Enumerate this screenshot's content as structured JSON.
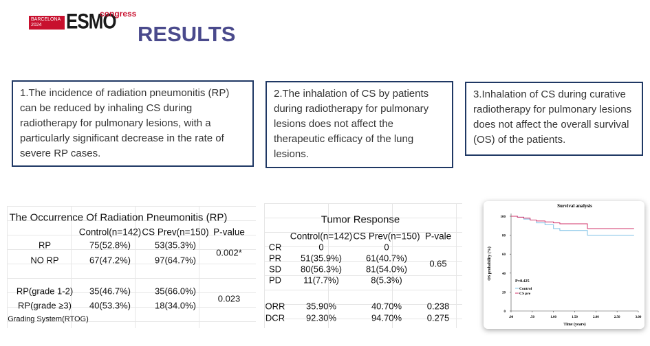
{
  "header": {
    "city": "BARCELONA",
    "year": "2024",
    "brand": "ESMO",
    "sub": "congress",
    "title": "RESULTS"
  },
  "boxes": [
    "1.The incidence of radiation pneumonitis (RP) can be reduced by inhaling CS during radiotherapy for pulmonary lesions, with a particularly significant decrease in the rate of severe RP cases.",
    "2.The inhalation of CS by patients during radiotherapy for pulmonary lesions does not affect the therapeutic efficacy of the lung lesions.",
    "3.Inhalation of CS during curative radiotherapy for pulmonary lesions does not affect the overall survival (OS) of the patients."
  ],
  "table1": {
    "title": "The Occurrence Of Radiation Pneumonitis (RP)",
    "columns": [
      "Control(n=142)",
      "CS Prev(n=150)",
      "P-value"
    ],
    "rows": [
      [
        "RP",
        "75(52.8%)",
        "53(35.3%)",
        "0.002*"
      ],
      [
        "NO RP",
        "67(47.2%)",
        "97(64.7%)"
      ],
      [
        "RP(grade 1-2)",
        "35(46.7%)",
        "35(66.0%)",
        "0.023"
      ],
      [
        "RP(grade ≥3)",
        "40(53.3%)",
        "18(34.0%)"
      ]
    ],
    "note": "Grading System(RTOG)"
  },
  "table2": {
    "title": "Tumor Response",
    "columns": [
      "Control(n=142)",
      "CS Prev(n=150)",
      "P-vale"
    ],
    "rows": [
      [
        "CR",
        "0",
        "0"
      ],
      [
        "PR",
        "51(35.9%)",
        "61(40.7%)",
        "0.65"
      ],
      [
        "SD",
        "80(56.3%)",
        "81(54.0%)"
      ],
      [
        "PD",
        "11(7.7%)",
        "8(5.3%)"
      ],
      [
        "ORR",
        "35.90%",
        "40.70%",
        "0.238"
      ],
      [
        "DCR",
        "92.30%",
        "94.70%",
        "0.275"
      ]
    ]
  },
  "chart_data": {
    "type": "line",
    "title": "Survival analysis",
    "x_label": "Time (years)",
    "y_label": "OS probability (%)",
    "annotation": "P=0.425",
    "x": [
      0,
      0.15,
      0.3,
      0.45,
      0.6,
      0.8,
      1.0,
      1.15,
      1.5,
      1.8,
      2.2,
      2.6,
      2.9
    ],
    "series": [
      {
        "name": "Control",
        "color": "#7cc0e6",
        "values": [
          100,
          99,
          97,
          96,
          93,
          91,
          87,
          85,
          85,
          80,
          80,
          80,
          80
        ]
      },
      {
        "name": "CS pre",
        "color": "#d0336a",
        "values": [
          100,
          99,
          98,
          96,
          95,
          94,
          93,
          92,
          92,
          87,
          87,
          87,
          87
        ]
      }
    ],
    "xlim": [
      0,
      3
    ],
    "ylim": [
      0,
      100
    ],
    "xticks": [
      {
        "value": 0,
        "label": ".00"
      },
      {
        "value": 0.5,
        "label": ".50"
      },
      {
        "value": 1,
        "label": "1.00"
      },
      {
        "value": 1.5,
        "label": "1.50"
      },
      {
        "value": 2,
        "label": "2.00"
      },
      {
        "value": 2.5,
        "label": "2.50"
      },
      {
        "value": 3,
        "label": "3.00"
      }
    ],
    "yticks": [
      0,
      20,
      40,
      60,
      80,
      100
    ],
    "step": true
  }
}
